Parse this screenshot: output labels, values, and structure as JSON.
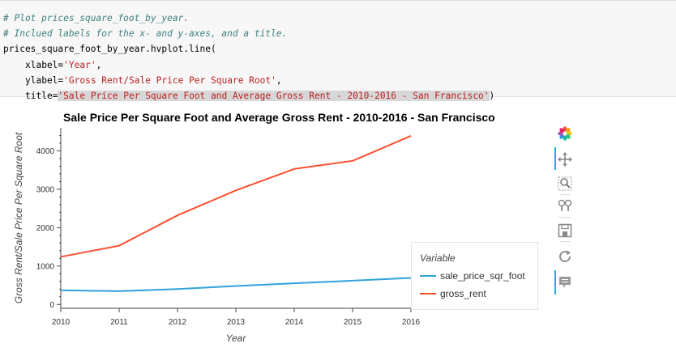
{
  "code": {
    "comment1": "# Plot prices_square_foot_by_year.",
    "comment2": "# Inclued labels for the x- and y-axes, and a title.",
    "line3_prefix": "prices_square_foot_by_year.hvplot.line(",
    "line4_key": "xlabel=",
    "line4_val": "'Year'",
    "line4_end": ",",
    "line5_key": "ylabel=",
    "line5_val": "'Gross Rent/Sale Price Per Square Root'",
    "line5_end": ",",
    "line6_key": "title=",
    "line6_val": "'Sale Price Per Square Foot and Average Gross Rent - 2010-2016 - San Francisco'",
    "line6_end": ")"
  },
  "plot": {
    "title": "Sale Price Per Square Foot and Average Gross Rent - 2010-2016 - San Francisco",
    "legend_title": "Variable"
  },
  "toolbar": {
    "icons": [
      "bokeh-logo-icon",
      "pan-icon",
      "box-zoom-icon",
      "wheel-zoom-icon",
      "save-icon",
      "reset-icon",
      "hover-icon"
    ],
    "logo_colors": [
      "#e74c3c",
      "#f39c12",
      "#f1c40f",
      "#2ecc71",
      "#1abc9c",
      "#3498db",
      "#9b59b6",
      "#e91e63"
    ]
  },
  "chart_data": {
    "type": "line",
    "title": "Sale Price Per Square Foot and Average Gross Rent - 2010-2016 - San Francisco",
    "xlabel": "Year",
    "ylabel": "Gross Rent/Sale Price Per Square Root",
    "x": [
      2010,
      2011,
      2012,
      2013,
      2014,
      2015,
      2016
    ],
    "xlim": [
      2010,
      2016
    ],
    "ylim": [
      -100,
      4600
    ],
    "xticks": [
      2010,
      2011,
      2012,
      2013,
      2014,
      2015,
      2016
    ],
    "yticks": [
      0,
      1000,
      2000,
      3000,
      4000
    ],
    "grid": false,
    "legend_placement": "bottom-right",
    "series": [
      {
        "name": "sale_price_sqr_foot",
        "color": "#30a2da",
        "values": [
          370,
          345,
          400,
          480,
          550,
          620,
          690
        ]
      },
      {
        "name": "gross_rent",
        "color": "#fc4f30",
        "values": [
          1240,
          1530,
          2320,
          2970,
          3530,
          3740,
          4390
        ]
      }
    ]
  }
}
